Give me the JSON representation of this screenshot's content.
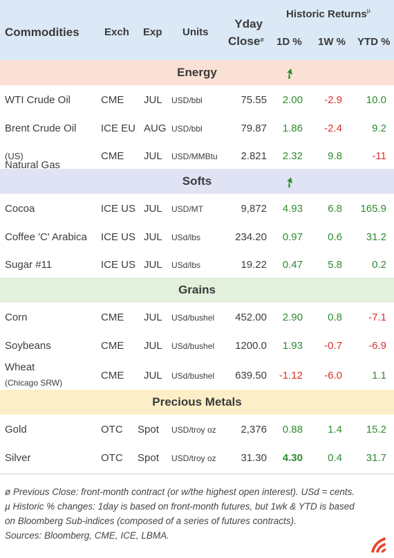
{
  "header": {
    "commodities": "Commodities",
    "exch": "Exch",
    "exp": "Exp",
    "units": "Units",
    "yday_line1": "Yday",
    "yday_line2": "Close",
    "yday_mark": "ø",
    "historic": "Historic Returns",
    "historic_mark": "µ",
    "d1": "1D %",
    "w1": "1W %",
    "ytd": "YTD %"
  },
  "sections": {
    "energy": {
      "title": "Energy",
      "color": "#fbe0d6"
    },
    "softs": {
      "title": "Softs",
      "color": "#dfe3f4"
    },
    "grains": {
      "title": "Grains",
      "color": "#e3f0dc"
    },
    "metals": {
      "title": "Precious Metals",
      "color": "#fcefc8"
    }
  },
  "rows": {
    "wti": {
      "name": "WTI Crude Oil",
      "exch": "CME",
      "exp": "JUL",
      "units": "USD/bbl",
      "close": "75.55",
      "d1": "2.00",
      "w1": "-2.9",
      "ytd": "10.0"
    },
    "brent": {
      "name": "Brent Crude Oil",
      "exch": "ICE EU",
      "exp": "AUG",
      "units": "USD/bbl",
      "close": "79.87",
      "d1": "1.86",
      "w1": "-2.4",
      "ytd": "9.2"
    },
    "natgas": {
      "name": "Natural Gas",
      "name_suffix": " (US)",
      "exch": "CME",
      "exp": "JUL",
      "units": "USD/MMBtu",
      "close": "2.821",
      "d1": "2.32",
      "w1": "9.8",
      "ytd": "-11"
    },
    "cocoa": {
      "name": "Cocoa",
      "exch": "ICE US",
      "exp": "JUL",
      "units": "USD/MT",
      "close": "9,872",
      "d1": "4.93",
      "w1": "6.8",
      "ytd": "165.9"
    },
    "coffee": {
      "name": "Coffee 'C' Arabica",
      "exch": "ICE US",
      "exp": "JUL",
      "units": "USd/lbs",
      "close": "234.20",
      "d1": "0.97",
      "w1": "0.6",
      "ytd": "31.2"
    },
    "sugar": {
      "name": "Sugar #11",
      "exch": "ICE US",
      "exp": "JUL",
      "units": "USd/lbs",
      "close": "19.22",
      "d1": "0.47",
      "w1": "5.8",
      "ytd": "0.2"
    },
    "corn": {
      "name": "Corn",
      "exch": "CME",
      "exp": "JUL",
      "units": "USd/bushel",
      "close": "452.00",
      "d1": "2.90",
      "w1": "0.8",
      "ytd": "-7.1"
    },
    "soy": {
      "name": "Soybeans",
      "exch": "CME",
      "exp": "JUL",
      "units": "USd/bushel",
      "close": "1200.0",
      "d1": "1.93",
      "w1": "-0.7",
      "ytd": "-6.9"
    },
    "wheat": {
      "name": "Wheat",
      "name_sub": "(Chicago SRW)",
      "exch": "CME",
      "exp": "JUL",
      "units": "USd/bushel",
      "close": "639.50",
      "d1": "-1.12",
      "w1": "-6.0",
      "ytd": "1.1"
    },
    "gold": {
      "name": "Gold",
      "exch": "OTC",
      "exp": "Spot",
      "units": "USD/troy oz",
      "close": "2,376",
      "d1": "0.88",
      "w1": "1.4",
      "ytd": "15.2"
    },
    "silver": {
      "name": "Silver",
      "exch": "OTC",
      "exp": "Spot",
      "units": "USD/troy oz",
      "close": "31.30",
      "d1": "4.30",
      "w1": "0.4",
      "ytd": "31.7"
    }
  },
  "footnotes": {
    "line1": "ø Previous Close: front-month contract (or w/the highest open interest). USd = cents.",
    "line2": "µ Historic % changes: 1day is based on front-month futures, but 1wk & YTD is based",
    "line3": "on Bloomberg Sub-indices (composed of a series of futures contracts).",
    "line4": "Sources: Bloomberg, CME, ICE, LBMA."
  },
  "colors": {
    "positive": "#2e8b2e",
    "negative": "#d8302a",
    "header_bg": "#dbe8f5",
    "logo": "#e8472f"
  },
  "icons": {
    "section_arrow": "up-arrow-icon",
    "logo": "brand-logo"
  }
}
